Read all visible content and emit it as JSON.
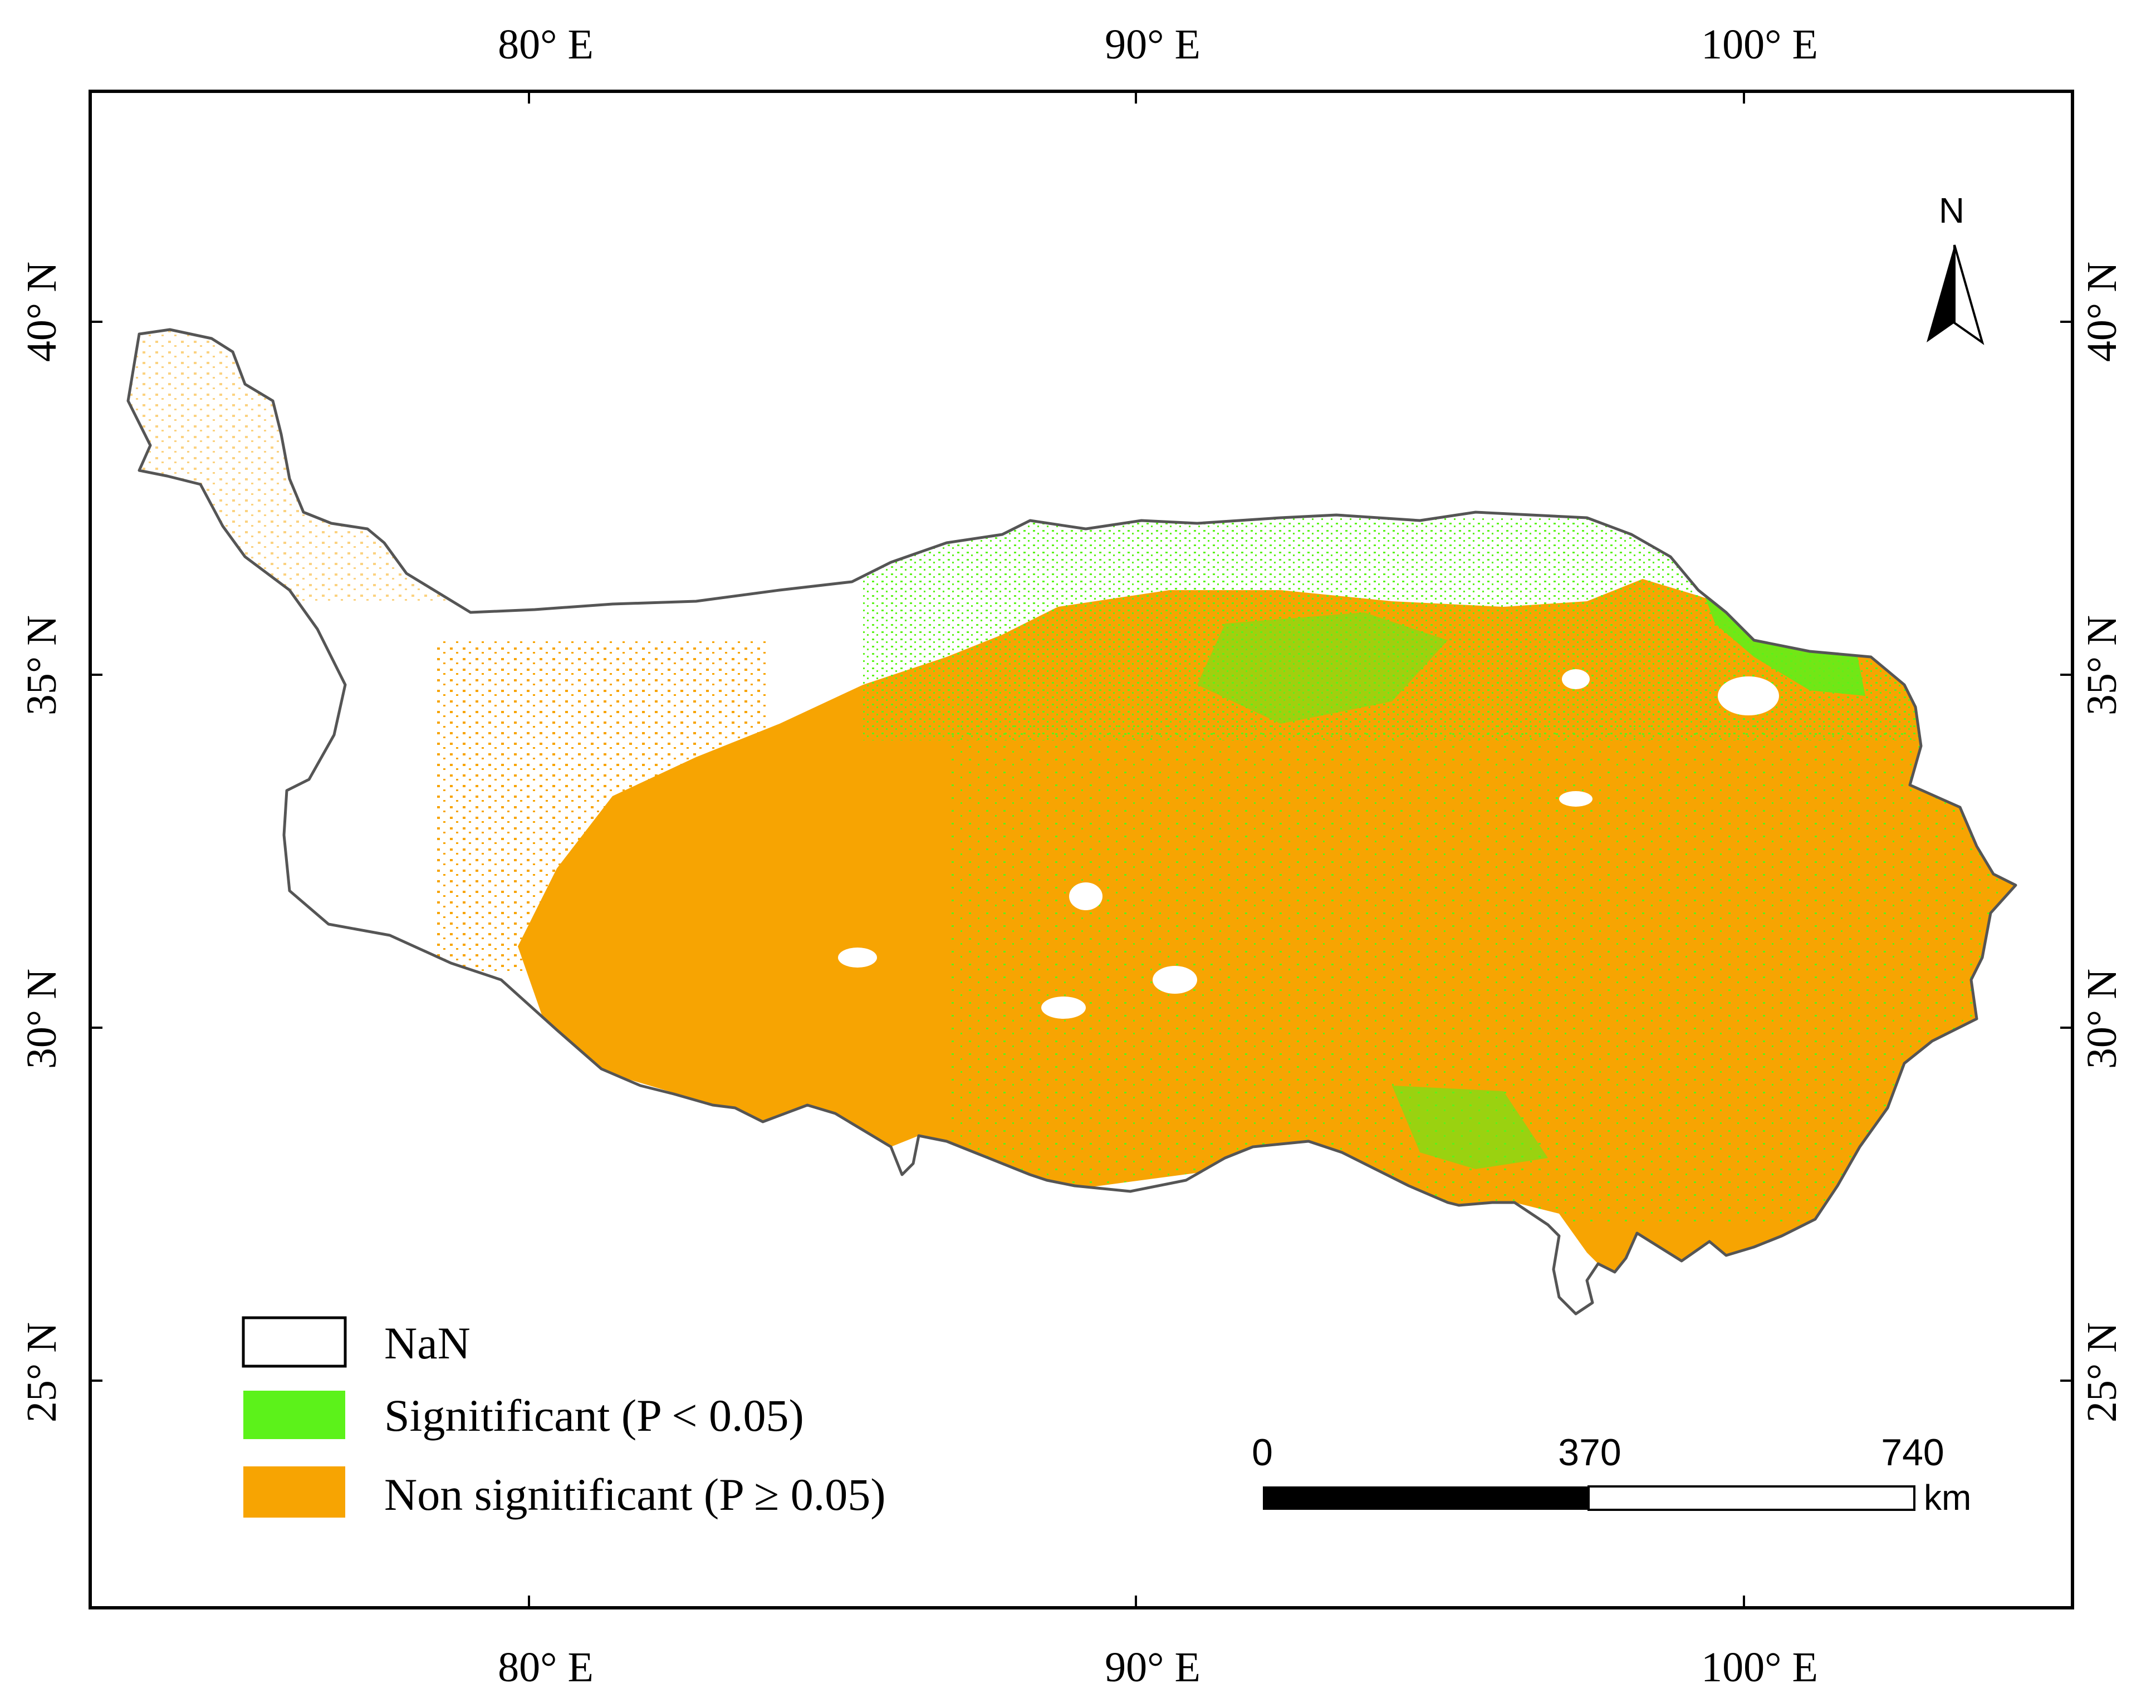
{
  "map": {
    "graticule": {
      "top_labels": [
        "80°  E",
        "90°  E",
        "100°  E"
      ],
      "bottom_labels": [
        "80°  E",
        "90°  E",
        "100°  E"
      ],
      "left_labels": [
        "40°  N",
        "35°  N",
        "30°  N",
        "25°  N"
      ],
      "right_labels": [
        "40°  N",
        "35°  N",
        "30°  N",
        "25°  N"
      ]
    },
    "north_arrow": {
      "label": "N"
    },
    "legend": {
      "items": [
        {
          "label": "NaN",
          "color": "#ffffff"
        },
        {
          "label": "Signitificant (P < 0.05)",
          "color": "#5cf21a"
        },
        {
          "label": "Non signitificant (P ≥ 0.05)",
          "color": "#f7a402"
        }
      ]
    },
    "scale_bar": {
      "ticks": [
        "0",
        "370",
        "740"
      ],
      "unit": "km"
    },
    "colors": {
      "significant": "#5cf21a",
      "non_significant": "#f7a402",
      "outline": "#555555",
      "frame": "#000000"
    }
  }
}
